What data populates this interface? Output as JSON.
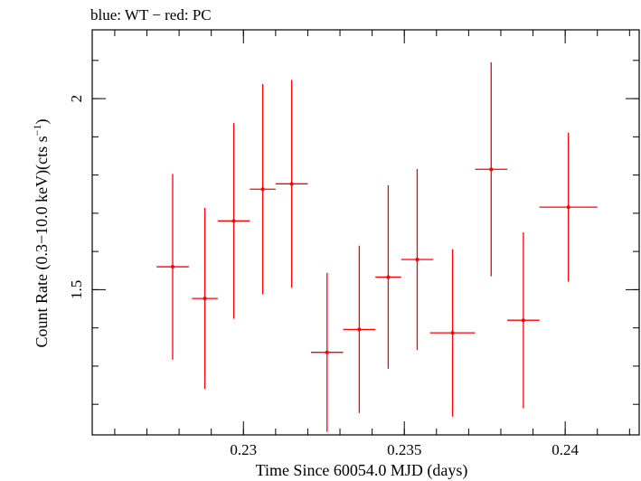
{
  "chart_data": {
    "type": "scatter",
    "title": "blue: WT − red: PC",
    "xlabel": "Time Since 60054.0 MJD (days)",
    "ylabel_main": "Count Rate (0.3−10.0 keV)(cts s",
    "ylabel_sup": "−1",
    "ylabel_close": ")",
    "xlim": [
      0.2253,
      0.2423
    ],
    "ylim": [
      1.12,
      2.18
    ],
    "x_ticks": [
      {
        "value": 0.23,
        "label": "0.23"
      },
      {
        "value": 0.235,
        "label": "0.235"
      },
      {
        "value": 0.24,
        "label": "0.24"
      }
    ],
    "y_ticks": [
      {
        "value": 1.5,
        "label": "1.5"
      },
      {
        "value": 2.0,
        "label": "2"
      }
    ],
    "x_minor_step": 0.001,
    "y_minor_step": 0.1,
    "grid": false,
    "series": [
      {
        "color": "#ff0000",
        "points": [
          {
            "x": 0.2278,
            "xerr": 0.0005,
            "y": 1.56,
            "yerr": 0.243
          },
          {
            "x": 0.2288,
            "xerr": 0.0004,
            "y": 1.477,
            "yerr": 0.237
          },
          {
            "x": 0.2297,
            "xerr": 0.0005,
            "y": 1.68,
            "yerr": 0.256
          },
          {
            "x": 0.2306,
            "xerr": 0.0004,
            "y": 1.763,
            "yerr": 0.275
          },
          {
            "x": 0.2315,
            "xerr": 0.0005,
            "y": 1.777,
            "yerr": 0.272
          },
          {
            "x": 0.2326,
            "xerr": 0.0005,
            "y": 1.336,
            "yerr": 0.208
          },
          {
            "x": 0.2336,
            "xerr": 0.0005,
            "y": 1.396,
            "yerr": 0.219
          },
          {
            "x": 0.2345,
            "xerr": 0.0004,
            "y": 1.533,
            "yerr": 0.24
          },
          {
            "x": 0.2354,
            "xerr": 0.0005,
            "y": 1.579,
            "yerr": 0.237
          },
          {
            "x": 0.2365,
            "xerr": 0.0007,
            "y": 1.387,
            "yerr": 0.219
          },
          {
            "x": 0.2377,
            "xerr": 0.0005,
            "y": 1.815,
            "yerr": 0.28
          },
          {
            "x": 0.2387,
            "xerr": 0.0005,
            "y": 1.42,
            "yerr": 0.23
          },
          {
            "x": 0.2401,
            "xerr": 0.0009,
            "y": 1.716,
            "yerr": 0.195
          }
        ]
      }
    ]
  }
}
